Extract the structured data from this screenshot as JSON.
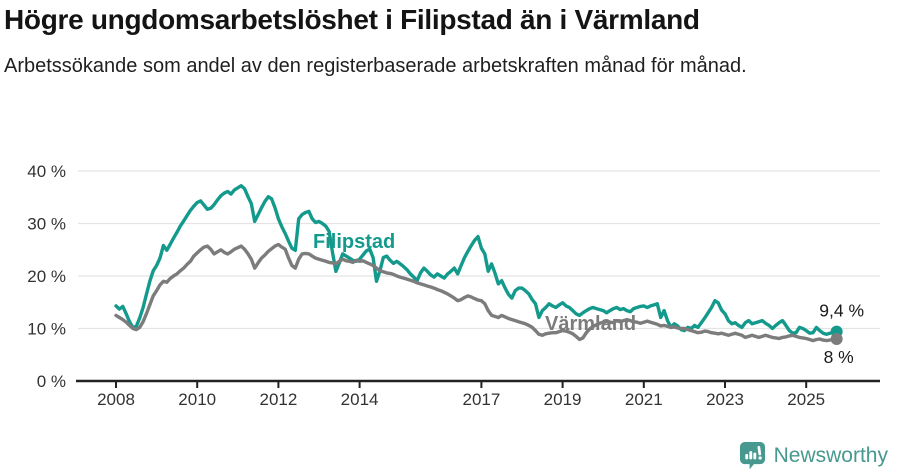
{
  "header": {
    "title": "Högre ungdomsarbetslöshet i Filipstad än i Värmland",
    "subtitle": "Arbetssökande som andel av den registerbaserade arbetskraften månad för månad."
  },
  "footer": {
    "brand": "Newsworthy"
  },
  "colors": {
    "filipstad": "#149a8d",
    "varmland": "#7c7c7c",
    "grid": "#e3e3e3",
    "axis": "#222222",
    "tick_label": "#333333",
    "end_label": "#1a1a1a",
    "brand_teal": "#47988e"
  },
  "chart_data": {
    "type": "line",
    "title": "Högre ungdomsarbetslöshet i Filipstad än i Värmland",
    "subtitle": "Arbetssökande som andel av den registerbaserade arbetskraften månad för månad.",
    "x_unit": "monthly, decimal years from 2008-01 to 2025-10",
    "x_start_year": 2008,
    "x_ticks": [
      2008,
      2010,
      2012,
      2014,
      2017,
      2019,
      2021,
      2023,
      2025
    ],
    "y_ticks": [
      0,
      10,
      20,
      30,
      40
    ],
    "y_tick_suffix": " %",
    "ylim": [
      0,
      42
    ],
    "grid": true,
    "series": [
      {
        "name": "Filipstad",
        "color": "#149a8d",
        "end_label": "9,4 %",
        "end_value": 9.4,
        "values": [
          14.3,
          13.7,
          14.2,
          12.8,
          11.3,
          10.2,
          10.4,
          12,
          14,
          16.5,
          19,
          21,
          22,
          23.4,
          25.8,
          24.9,
          26,
          27.2,
          28.3,
          29.5,
          30.5,
          31.5,
          32.5,
          33.3,
          34,
          34.3,
          33.5,
          32.7,
          32.9,
          33.6,
          34.5,
          35.3,
          35.8,
          36.1,
          35.6,
          36.4,
          36.8,
          37.2,
          36.6,
          35.1,
          33.8,
          30.4,
          31.7,
          33,
          34.2,
          35.1,
          34.7,
          33,
          30.9,
          29.4,
          28.1,
          26.6,
          25.3,
          24.9,
          30.9,
          31.7,
          32.1,
          32.3,
          30.9,
          30.2,
          30.4,
          30,
          29.5,
          28.5,
          24.5,
          20.9,
          22.5,
          24.2,
          23.8,
          23.4,
          23,
          22.8,
          23.2,
          24,
          24.8,
          25.1,
          23.5,
          19,
          21,
          23.5,
          23.8,
          23,
          22.4,
          22.8,
          22.3,
          21.8,
          21.2,
          20.4,
          19.8,
          19.1,
          20.6,
          21.5,
          20.9,
          20.2,
          19.8,
          20.4,
          20,
          19.6,
          20.4,
          20.9,
          21.5,
          20.4,
          22,
          23.5,
          24.7,
          25.8,
          26.8,
          27.5,
          25.3,
          24.2,
          20.9,
          22.3,
          20.6,
          18.5,
          19.1,
          17.7,
          16.5,
          15.8,
          17.2,
          17.7,
          17.7,
          17.2,
          16.6,
          15.5,
          14.7,
          12.1,
          13.4,
          14,
          14.7,
          14.3,
          14,
          14.5,
          14.9,
          14.3,
          14,
          13.4,
          12.8,
          12.5,
          13,
          13.4,
          13.8,
          14,
          13.8,
          13.6,
          13.4,
          13,
          13.4,
          13.8,
          14,
          13.6,
          13.8,
          13.4,
          13.2,
          13.8,
          14,
          14.2,
          14.3,
          14,
          14.3,
          14.5,
          14.7,
          12.1,
          13.4,
          11.5,
          10.2,
          10.9,
          10.5,
          9.8,
          9.6,
          10.2,
          10,
          10.6,
          10.2,
          11.1,
          12,
          13,
          14,
          15.3,
          14.9,
          13.5,
          12.8,
          11.5,
          10.9,
          11.1,
          10.6,
          10.2,
          11.1,
          11.5,
          10.9,
          11.1,
          11.3,
          11.5,
          11,
          10.6,
          10,
          10.6,
          11.1,
          11.5,
          10.6,
          9.6,
          9.1,
          9.2,
          10.2,
          10,
          9.6,
          9.1,
          9.2,
          10.2,
          9.6,
          9.1,
          8.9,
          9.1,
          9.3,
          9.4
        ]
      },
      {
        "name": "Värmland",
        "color": "#7c7c7c",
        "end_label": "8 %",
        "end_value": 8.0,
        "values": [
          12.5,
          12.1,
          11.7,
          11.2,
          10.6,
          10,
          9.8,
          10.2,
          11.3,
          12.8,
          14.5,
          16.2,
          17.2,
          18.3,
          19,
          18.8,
          19.5,
          20,
          20.4,
          21,
          21.5,
          22.2,
          22.8,
          23.8,
          24.4,
          25,
          25.5,
          25.7,
          25.1,
          24.2,
          24.6,
          25,
          24.5,
          24.2,
          24.6,
          25.1,
          25.4,
          25.7,
          25.1,
          24.2,
          23.2,
          21.5,
          22.5,
          23.4,
          24,
          24.7,
          25.2,
          25.7,
          26,
          25.5,
          25.1,
          23.4,
          22,
          21.5,
          23.2,
          24.2,
          24.3,
          24.2,
          23.8,
          23.4,
          23.2,
          23,
          22.8,
          22.6,
          22.5,
          22.3,
          22.8,
          23.2,
          22.9,
          22.8,
          22.6,
          23,
          22.8,
          22.9,
          22.6,
          22.3,
          22,
          21.5,
          21,
          20.8,
          20.6,
          20.5,
          20.3,
          20,
          19.8,
          19.6,
          19.4,
          19.2,
          19,
          18.7,
          18.5,
          18.3,
          18.1,
          17.9,
          17.7,
          17.4,
          17.2,
          16.9,
          16.6,
          16.2,
          15.8,
          15.3,
          15.5,
          15.9,
          16.2,
          16,
          15.7,
          15.4,
          15.3,
          14.7,
          13.4,
          12.5,
          12.3,
          12.1,
          12.5,
          12.2,
          11.9,
          11.7,
          11.5,
          11.3,
          11.1,
          10.9,
          10.6,
          10.2,
          9.6,
          8.9,
          8.7,
          9,
          9.1,
          9.2,
          9.2,
          9.4,
          9.6,
          9.5,
          9.3,
          9,
          8.5,
          7.9,
          8.2,
          9.2,
          9.9,
          10.4,
          10.7,
          11,
          11.2,
          11.4,
          11.2,
          11.1,
          11.5,
          11.3,
          11.5,
          11.7,
          11.5,
          11.3,
          11.2,
          11,
          11.2,
          11.4,
          11.2,
          11,
          10.8,
          10.5,
          10.6,
          10.4,
          10.2,
          10.3,
          10.1,
          10,
          10,
          9.8,
          9.6,
          9.4,
          9.2,
          9.3,
          9.5,
          9.4,
          9.2,
          9.1,
          9,
          9.1,
          8.9,
          8.7,
          8.9,
          9.1,
          8.9,
          8.7,
          8.3,
          8.5,
          8.7,
          8.5,
          8.3,
          8.5,
          8.7,
          8.5,
          8.3,
          8.2,
          8.1,
          8.3,
          8.4,
          8.6,
          8.7,
          8.5,
          8.3,
          8.2,
          8.1,
          7.9,
          7.7,
          7.9,
          8,
          7.8,
          7.7,
          7.8,
          7.9,
          8
        ]
      }
    ],
    "legend_position": "inline-labels-on-lines"
  }
}
